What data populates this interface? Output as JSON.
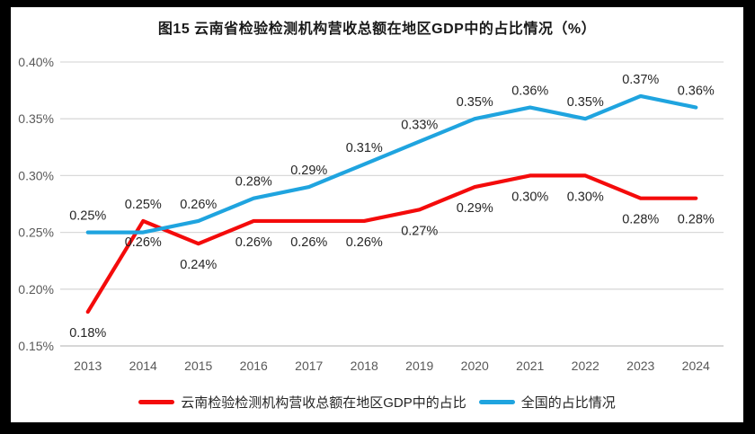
{
  "chart_data": {
    "type": "line",
    "title": "图15 云南省检验检测机构营收总额在地区GDP中的占比情况（%）",
    "categories": [
      "2013",
      "2014",
      "2015",
      "2016",
      "2017",
      "2018",
      "2019",
      "2020",
      "2021",
      "2022",
      "2023",
      "2024"
    ],
    "series": [
      {
        "name": "云南检验检测机构营收总额在地区GDP中的占比",
        "color": "#f40b0b",
        "label_position": "below",
        "values": [
          0.18,
          0.26,
          0.24,
          0.26,
          0.26,
          0.26,
          0.27,
          0.29,
          0.3,
          0.3,
          0.28,
          0.28
        ],
        "labels": [
          "0.18%",
          "0.26%",
          "0.24%",
          "0.26%",
          "0.26%",
          "0.26%",
          "0.27%",
          "0.29%",
          "0.30%",
          "0.30%",
          "0.28%",
          "0.28%"
        ]
      },
      {
        "name": "全国的占比情况",
        "color": "#1fa4df",
        "label_position": "above",
        "values": [
          0.25,
          0.25,
          0.26,
          0.28,
          0.29,
          0.31,
          0.33,
          0.35,
          0.36,
          0.35,
          0.37,
          0.36
        ],
        "labels": [
          "0.25%",
          "0.25%",
          "0.26%",
          "0.28%",
          "0.29%",
          "0.31%",
          "0.33%",
          "0.35%",
          "0.36%",
          "0.35%",
          "0.37%",
          "0.36%"
        ]
      }
    ],
    "y_axis": {
      "min": 0.15,
      "max": 0.4,
      "step": 0.05,
      "ticks": [
        "0.40%",
        "0.35%",
        "0.30%",
        "0.25%",
        "0.20%",
        "0.15%"
      ]
    },
    "grid": true,
    "legend_position": "bottom",
    "colors": {
      "grid_line": "#d9d9d9",
      "axis_line": "#bfbfbf",
      "tick_label": "#595959",
      "data_label": "#262626",
      "frame": "#000000",
      "paper": "#ffffff"
    }
  }
}
